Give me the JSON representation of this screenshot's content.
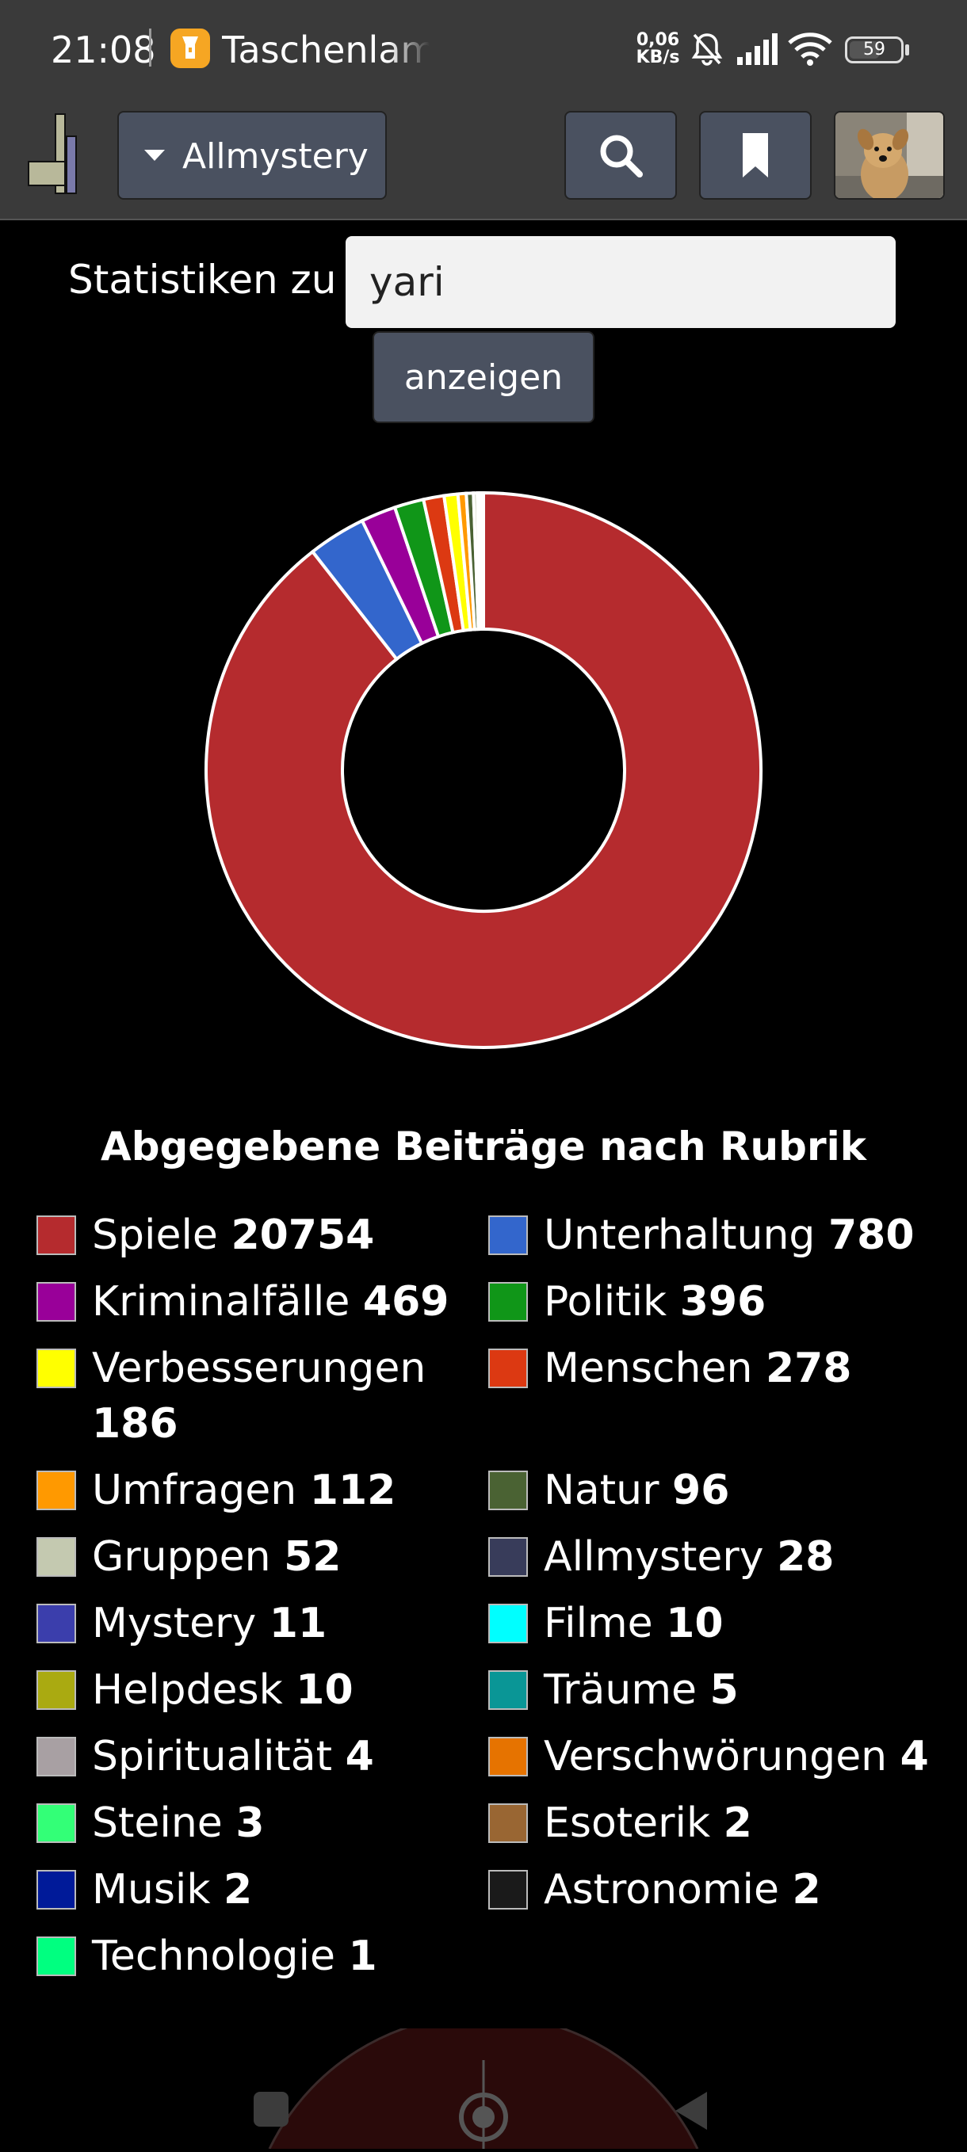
{
  "status_bar": {
    "time": "21:08",
    "app_name": "Taschenlampe",
    "net_speed_value": "0,06",
    "net_speed_unit": "KB/s",
    "battery": "59",
    "icons": [
      "flashlight-icon",
      "bell-muted-icon",
      "signal-icon",
      "wifi-icon",
      "battery-icon"
    ]
  },
  "header": {
    "forum_select": "Allmystery",
    "buttons": [
      "search-icon",
      "bookmark-icon"
    ]
  },
  "form": {
    "label": "Statistiken zu",
    "input_value": "yari",
    "submit_label": "anzeigen"
  },
  "colors": {
    "header_bg": "#3a3a3a",
    "button_bg": "#4a5160",
    "page_bg": "#000000"
  },
  "chart_data": {
    "type": "pie",
    "variant": "donut",
    "title": "Abgegebene Beiträge nach Rubrik",
    "legend_placement": "bottom",
    "categories": [
      "Spiele",
      "Unterhaltung",
      "Kriminalfälle",
      "Politik",
      "Verbesserungen",
      "Menschen",
      "Umfragen",
      "Natur",
      "Gruppen",
      "Allmystery",
      "Mystery",
      "Filme",
      "Helpdesk",
      "Träume",
      "Spiritualität",
      "Verschwörungen",
      "Steine",
      "Esoterik",
      "Musik",
      "Astronomie",
      "Technologie"
    ],
    "values": [
      20754,
      780,
      469,
      396,
      186,
      278,
      112,
      96,
      52,
      28,
      11,
      10,
      10,
      5,
      4,
      4,
      3,
      2,
      2,
      2,
      1
    ],
    "colors": [
      "#b52b2e",
      "#3366cc",
      "#990099",
      "#109618",
      "#ffff00",
      "#dc3912",
      "#ff9900",
      "#4a6233",
      "#c4c9b0",
      "#383c5a",
      "#3b3eac",
      "#00ffff",
      "#aaaa11",
      "#0a9696",
      "#a8a0a3",
      "#e67300",
      "#33ff77",
      "#996633",
      "#001a99",
      "#1a1a1a",
      "#00ff80"
    ],
    "slice_order": [
      0,
      1,
      2,
      3,
      5,
      4,
      6,
      7,
      8,
      9,
      10,
      11,
      12,
      13,
      14,
      15,
      16,
      17,
      18,
      19,
      20
    ]
  }
}
